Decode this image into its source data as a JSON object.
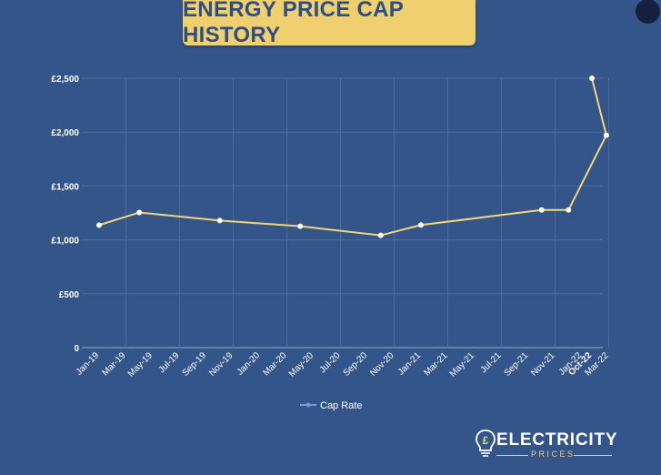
{
  "header": {
    "title": "ENERGY PRICE CAP HISTORY"
  },
  "logo": {
    "word": "ELECTRICITY",
    "sub": "PRICES",
    "symbol": "£"
  },
  "colors": {
    "background": "#34558a",
    "line": "#f2d47a",
    "title_bg": "#f0cf6e",
    "title_text": "#2d4f86",
    "legend_marker": "#7b96d6"
  },
  "chart_data": {
    "type": "line",
    "title": "",
    "xlabel": "",
    "ylabel": "",
    "ylim": [
      0,
      2500
    ],
    "yticks": [
      0,
      500,
      1000,
      1500,
      2000,
      2500
    ],
    "ytick_labels": [
      "0",
      "£500",
      "£1,000",
      "£1,500",
      "£2,000",
      "£2,500"
    ],
    "xtick_labels": [
      "Jan-19",
      "Mar-19",
      "May-19",
      "Jul-19",
      "Sep-19",
      "Nov-19",
      "Jan-20",
      "Mar-20",
      "May-20",
      "Jul-20",
      "Sep-20",
      "Nov-20",
      "Jan-21",
      "Mar-21",
      "May-21",
      "Jul-21",
      "Sep-21",
      "Nov-21",
      "Jan-22",
      "Mar-22",
      "Oct-22"
    ],
    "grid": true,
    "legend_position": "bottom",
    "series": [
      {
        "name": "Cap Rate",
        "points": [
          {
            "x": "Jan-19",
            "y": 1137
          },
          {
            "x": "Apr-19",
            "y": 1254
          },
          {
            "x": "Oct-19",
            "y": 1179
          },
          {
            "x": "Apr-20",
            "y": 1126
          },
          {
            "x": "Oct-20",
            "y": 1042
          },
          {
            "x": "Jan-21",
            "y": 1138
          },
          {
            "x": "Oct-21",
            "y": 1277
          },
          {
            "x": "Dec-21",
            "y": 1277
          },
          {
            "x": "Apr-22",
            "y": 1971
          },
          {
            "x": "Oct-22",
            "y": 2500
          }
        ]
      }
    ]
  }
}
